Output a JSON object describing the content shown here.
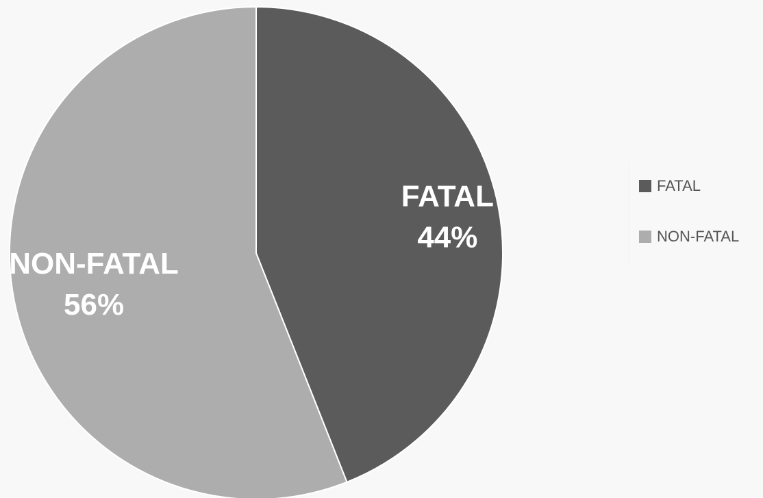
{
  "chart_data": {
    "type": "pie",
    "title": "",
    "slices": [
      {
        "label": "FATAL",
        "value": 44,
        "value_label": "44%",
        "color": "#5b5b5b"
      },
      {
        "label": "NON-FATAL",
        "value": 56,
        "value_label": "56%",
        "color": "#adadad"
      }
    ],
    "start_angle_deg": 0,
    "direction": "clockwise",
    "legend": {
      "placement": "right",
      "entries": [
        "FATAL",
        "NON-FATAL"
      ]
    }
  }
}
